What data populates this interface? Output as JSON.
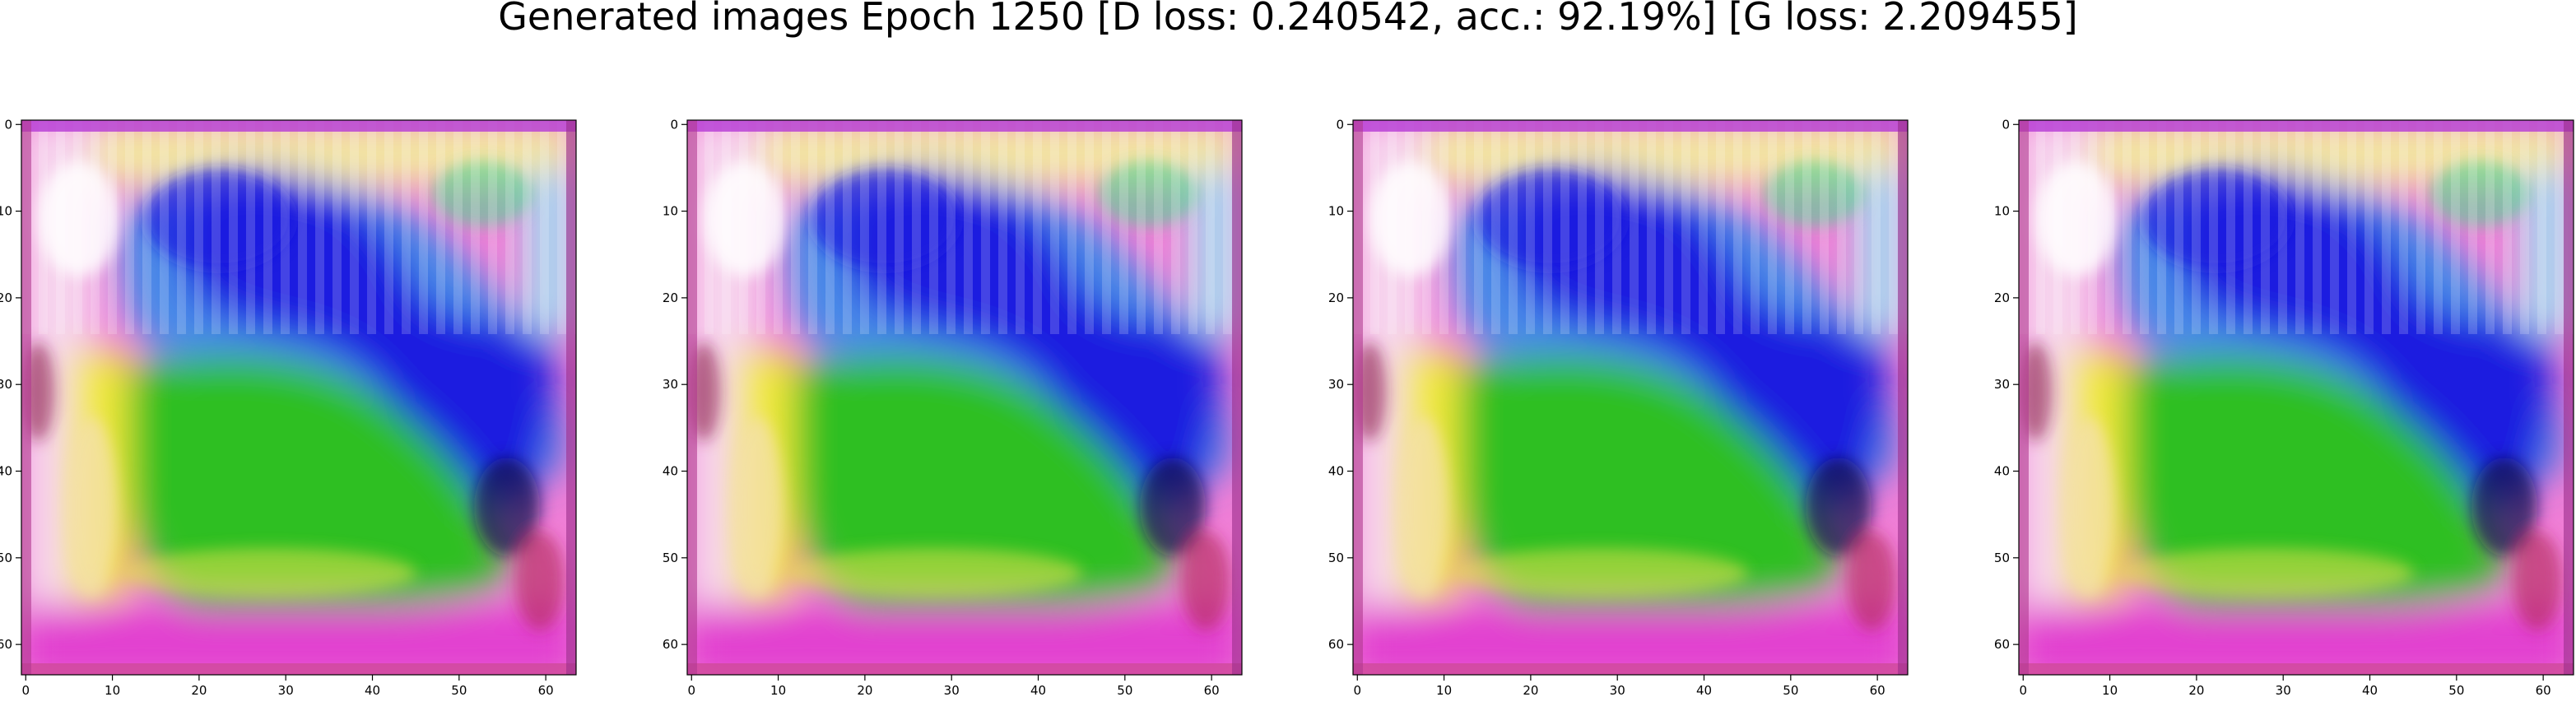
{
  "figure": {
    "title": "Generated images Epoch 1250 [D loss: 0.240542, acc.: 92.19%] [G loss: 2.209455]"
  },
  "panels": [
    {
      "name": "generated-image-1"
    },
    {
      "name": "generated-image-2"
    },
    {
      "name": "generated-image-3"
    },
    {
      "name": "generated-image-4"
    }
  ],
  "axes": {
    "x_ticks": [
      0,
      10,
      20,
      30,
      40,
      50,
      60
    ],
    "y_ticks": [
      0,
      10,
      20,
      30,
      40,
      50,
      60
    ],
    "range": [
      -0.5,
      63.5
    ]
  },
  "colors": {
    "magenta": "#e23fd0",
    "blue": "#1d1fe0",
    "light_blue": "#4a8ae8",
    "green": "#2dbf23",
    "yellow": "#f2e83a",
    "pink": "#f07ed6",
    "dark_navy": "#10104a"
  }
}
